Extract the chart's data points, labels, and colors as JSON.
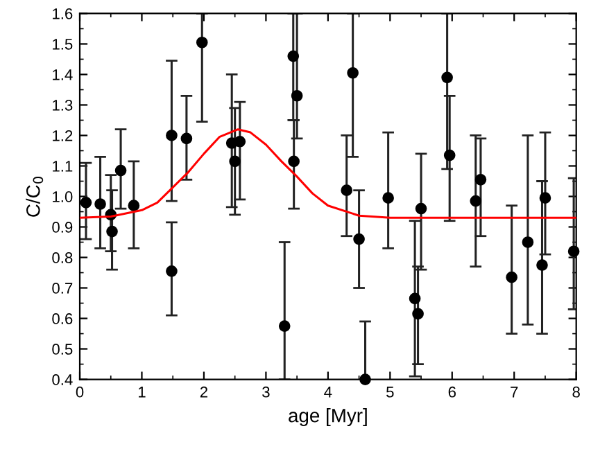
{
  "chart_data": {
    "type": "scatter",
    "xlabel": "age [Myr]",
    "ylabel": "C/C$_{0}$",
    "xlim": [
      0,
      8
    ],
    "xticks": [
      0,
      1,
      2,
      3,
      4,
      5,
      6,
      7,
      8
    ],
    "ylim": [
      0.4,
      1.6
    ],
    "yticks": [
      {
        "value": 0.4,
        "label": "0.4"
      },
      {
        "value": 0.5,
        "label": "0.5"
      },
      {
        "value": 0.6,
        "label": "0.6"
      },
      {
        "value": 0.7,
        "label": "0.7"
      },
      {
        "value": 0.8,
        "label": "0.8"
      },
      {
        "value": 0.9,
        "label": "0.9"
      },
      {
        "value": 1.0,
        "label": "1.0"
      },
      {
        "value": 1.1,
        "label": "1.1"
      },
      {
        "value": 1.2,
        "label": "1.2"
      },
      {
        "value": 1.3,
        "label": "1.3"
      },
      {
        "value": 1.4,
        "label": "1.4"
      },
      {
        "value": 1.5,
        "label": "1.5"
      },
      {
        "value": 1.6,
        "label": "1.6"
      }
    ],
    "grid": false,
    "legend": false,
    "series": [
      {
        "color": "#000000",
        "marker": "circle",
        "x": [
          0.1,
          0.33,
          0.5,
          0.52,
          0.66,
          0.87,
          1.48,
          1.48,
          1.72,
          1.97,
          2.45,
          2.5,
          2.58,
          3.3,
          3.44,
          3.5,
          3.45,
          4.3,
          4.4,
          4.5,
          4.6,
          4.97,
          5.4,
          5.45,
          5.5,
          5.92,
          5.96,
          6.38,
          6.46,
          6.96,
          7.22,
          7.45,
          7.5,
          7.96
        ],
        "values": [
          0.98,
          0.975,
          0.94,
          0.885,
          1.085,
          0.97,
          1.2,
          0.755,
          1.19,
          1.505,
          1.175,
          1.115,
          1.18,
          0.575,
          1.46,
          1.33,
          1.115,
          1.02,
          1.405,
          0.86,
          0.4,
          0.995,
          0.665,
          0.615,
          0.96,
          1.39,
          1.135,
          0.985,
          1.055,
          0.735,
          0.85,
          0.775,
          0.995,
          0.82
        ],
        "errors": [
          [
            0.86,
            1.11
          ],
          [
            0.83,
            1.13
          ],
          [
            0.82,
            1.07
          ],
          [
            0.76,
            1.02
          ],
          [
            0.96,
            1.22
          ],
          [
            0.83,
            1.115
          ],
          [
            0.985,
            1.445
          ],
          [
            0.61,
            0.915
          ],
          [
            1.055,
            1.33
          ],
          [
            1.245,
            1.6
          ],
          [
            0.965,
            1.4
          ],
          [
            0.94,
            1.29
          ],
          [
            0.99,
            1.31
          ],
          [
            0.4,
            0.85
          ],
          [
            1.25,
            1.6
          ],
          [
            1.19,
            1.6
          ],
          [
            0.96,
            1.25
          ],
          [
            0.87,
            1.2
          ],
          [
            1.13,
            1.6
          ],
          [
            0.7,
            1.02
          ],
          [
            0.4,
            0.59
          ],
          [
            0.83,
            1.21
          ],
          [
            0.41,
            0.92
          ],
          [
            0.45,
            0.77
          ],
          [
            0.76,
            1.14
          ],
          [
            1.09,
            1.6
          ],
          [
            0.92,
            1.33
          ],
          [
            0.77,
            1.2
          ],
          [
            0.87,
            1.19
          ],
          [
            0.55,
            0.97
          ],
          [
            0.58,
            1.2
          ],
          [
            0.55,
            1.05
          ],
          [
            0.81,
            1.21
          ],
          [
            0.63,
            1.06
          ]
        ]
      },
      {
        "type": "line",
        "color": "#ff0000",
        "marker": "none",
        "line_style": "solid",
        "x": [
          0,
          0.5,
          1,
          1.25,
          1.5,
          1.75,
          2,
          2.25,
          2.55,
          2.75,
          3,
          3.25,
          3.5,
          3.75,
          4,
          4.5,
          5,
          6,
          8
        ],
        "values": [
          0.93,
          0.934,
          0.955,
          0.98,
          1.03,
          1.08,
          1.14,
          1.195,
          1.22,
          1.21,
          1.17,
          1.115,
          1.065,
          1.01,
          0.97,
          0.937,
          0.93,
          0.93,
          0.93
        ]
      }
    ]
  }
}
